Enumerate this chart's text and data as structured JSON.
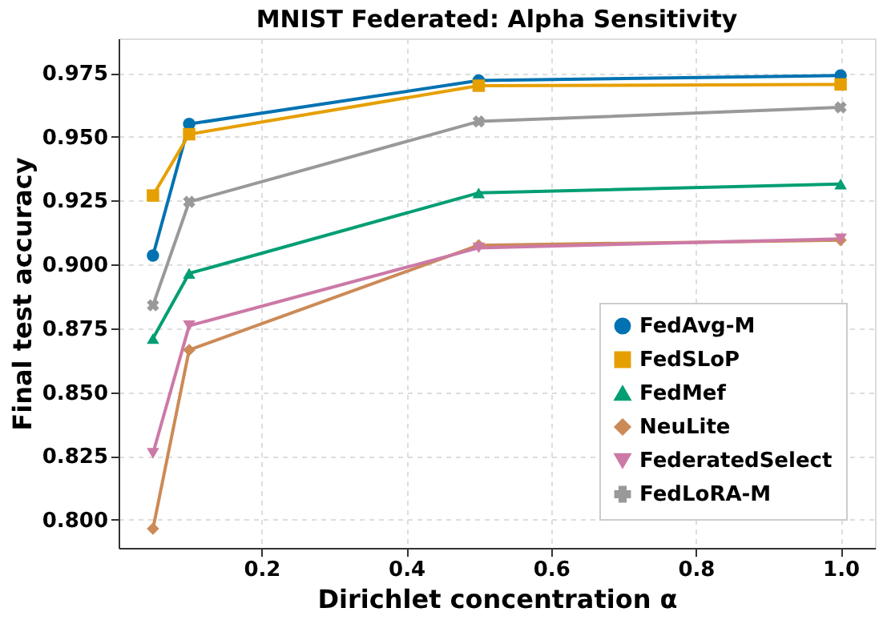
{
  "chart_data": {
    "type": "line",
    "title": "MNIST Federated: Alpha Sensitivity",
    "xlabel": "Dirichlet concentration α",
    "ylabel": "Final test accuracy",
    "x": [
      0.05,
      0.1,
      0.5,
      1.0
    ],
    "xlim": [
      0.0025,
      1.0475
    ],
    "xticks": [
      0.2,
      0.4,
      0.6,
      0.8,
      {
        "value": 1,
        "label": "1.0"
      }
    ],
    "ylim": [
      0.789,
      0.9885
    ],
    "yticks": [
      {
        "value": 0.8,
        "label": "0.800"
      },
      {
        "value": 0.825,
        "label": "0.825"
      },
      {
        "value": 0.85,
        "label": "0.850"
      },
      {
        "value": 0.875,
        "label": "0.875"
      },
      {
        "value": 0.9,
        "label": "0.900"
      },
      {
        "value": 0.925,
        "label": "0.925"
      },
      {
        "value": 0.95,
        "label": "0.950"
      },
      {
        "value": 0.975,
        "label": "0.975"
      }
    ],
    "grid": true,
    "legend": "bottom right",
    "line_style": "solid",
    "series": [
      {
        "name": "FedAvg-M",
        "color": "#0072b2",
        "marker": "circle",
        "values": [
          0.9035,
          0.955,
          0.972,
          0.974
        ]
      },
      {
        "name": "FedSLoP",
        "color": "#e69f00",
        "marker": "square",
        "values": [
          0.927,
          0.951,
          0.97,
          0.9705
        ]
      },
      {
        "name": "FedMef",
        "color": "#009e73",
        "marker": "triangle",
        "values": [
          0.871,
          0.8965,
          0.928,
          0.9315
        ]
      },
      {
        "name": "NeuLite",
        "color": "#cc8a57",
        "marker": "diamond",
        "values": [
          0.7965,
          0.8665,
          0.9075,
          0.9095
        ]
      },
      {
        "name": "FederatedSelect",
        "color": "#cc79a7",
        "marker": "triangle-down",
        "values": [
          0.826,
          0.876,
          0.9065,
          0.91
        ]
      },
      {
        "name": "FedLoRA-M",
        "color": "#999999",
        "marker": "cross",
        "values": [
          0.884,
          0.9245,
          0.956,
          0.9615
        ]
      }
    ]
  }
}
